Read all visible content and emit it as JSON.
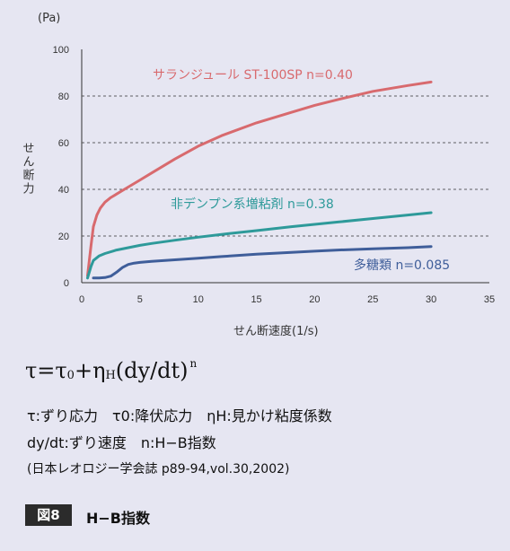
{
  "chart_data": {
    "type": "line",
    "unit_label": "(Pa)",
    "ylabel": "せん断力",
    "xlabel": "せん断速度(1/s)",
    "xlim": [
      0,
      35
    ],
    "ylim": [
      0,
      100
    ],
    "xticks": [
      0,
      5,
      10,
      15,
      20,
      25,
      30,
      35
    ],
    "yticks": [
      0,
      20,
      40,
      60,
      80,
      100
    ],
    "dashed_gridlines_y": [
      20,
      40,
      60,
      80
    ],
    "series": [
      {
        "name": "サランジュール ST-100SP n=0.40",
        "color": "#d86a6e",
        "x": [
          0.5,
          0.8,
          1,
          1.3,
          1.6,
          2,
          2.5,
          3,
          4,
          5,
          6,
          8,
          10,
          12,
          15,
          18,
          20,
          22,
          25,
          28,
          30
        ],
        "y": [
          3,
          16,
          24,
          29,
          32,
          34.5,
          36.5,
          38,
          41,
          44,
          47,
          53,
          58.5,
          63,
          68.5,
          73,
          76,
          78.5,
          82,
          84.5,
          86
        ]
      },
      {
        "name": "非デンプン系増粘剤 n=0.38",
        "color": "#2e9a9a",
        "x": [
          0.5,
          0.8,
          1,
          1.5,
          2,
          3,
          4,
          5,
          6,
          8,
          10,
          12,
          15,
          18,
          20,
          22,
          25,
          28,
          30
        ],
        "y": [
          2,
          7,
          9.5,
          11.5,
          12.5,
          14,
          15,
          16,
          16.8,
          18.2,
          19.5,
          20.7,
          22.3,
          24,
          25,
          26,
          27.5,
          29,
          30
        ]
      },
      {
        "name": "多糖類 n=0.085",
        "color": "#3f5e9a",
        "x": [
          1,
          1.5,
          2,
          2.5,
          3,
          3.5,
          4,
          4.5,
          5,
          6,
          8,
          10,
          12,
          15,
          18,
          20,
          22,
          25,
          28,
          30
        ],
        "y": [
          2,
          2,
          2.2,
          2.8,
          4.5,
          6.5,
          7.8,
          8.4,
          8.7,
          9.1,
          9.8,
          10.5,
          11.2,
          12.2,
          13,
          13.5,
          14,
          14.5,
          15,
          15.5
        ]
      }
    ]
  },
  "formula": {
    "tau": "τ",
    "equals": "=",
    "tau0_base": "τ",
    "tau0_sub": "0",
    "plus": "+",
    "eta_base": "η",
    "eta_sub": "H",
    "rate": "(dy/dt)",
    "exp": "n"
  },
  "definitions": {
    "line1": "τ:ずり応力　τ0:降伏応力　ηH:見かけ粘度係数",
    "line2": "dy/dt:ずり速度　n:H−B指数"
  },
  "source": "(日本レオロジー学会誌 p89-94,vol.30,2002)",
  "figure": {
    "badge": "図8",
    "title": "H−B指数"
  }
}
